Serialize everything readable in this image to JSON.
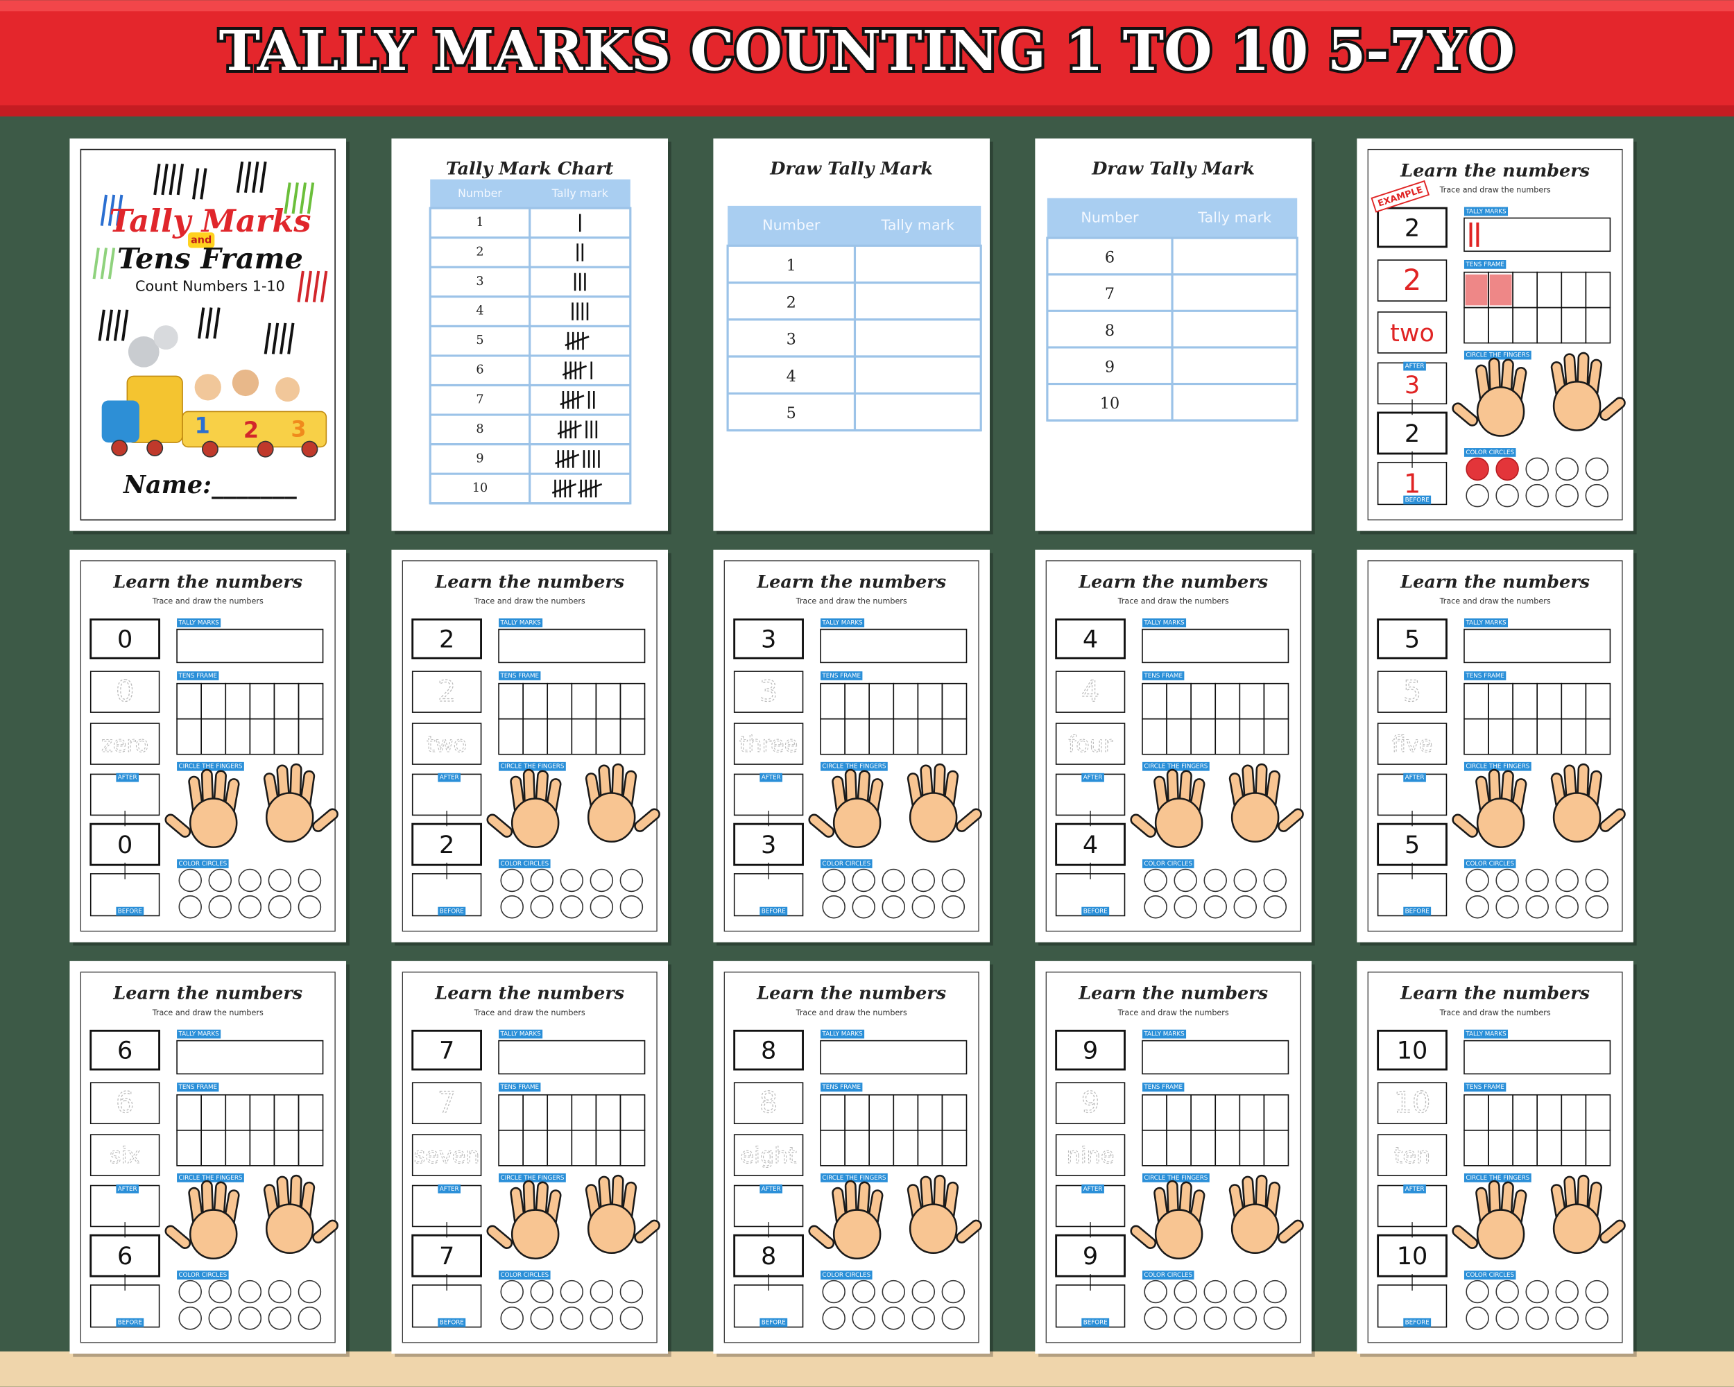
{
  "header": {
    "title": "TALLY MARKS COUNTING 1 TO 10 5-7YO"
  },
  "cover": {
    "title_1": "Tally Marks",
    "connector": "and",
    "title_2": "Tens Frame",
    "subtitle": "Count Numbers 1-10",
    "name_line": "Name:_______",
    "train_numbers": [
      1,
      2,
      3
    ]
  },
  "tally_chart": {
    "title": "Tally Mark Chart",
    "headers": [
      "Number",
      "Tally mark"
    ],
    "numbers": [
      1,
      2,
      3,
      4,
      5,
      6,
      7,
      8,
      9,
      10
    ]
  },
  "draw_pages": [
    {
      "title": "Draw Tally Mark",
      "headers": [
        "Number",
        "Tally mark"
      ],
      "numbers": [
        1,
        2,
        3,
        4,
        5
      ]
    },
    {
      "title": "Draw Tally Mark",
      "headers": [
        "Number",
        "Tally mark"
      ],
      "numbers": [
        6,
        7,
        8,
        9,
        10
      ]
    }
  ],
  "worksheet_labels": {
    "title": "Learn the numbers",
    "subtitle": "Trace and draw the numbers",
    "tally_marks": "TALLY MARKS",
    "tens_frame": "TENS FRAME",
    "circle_fingers": "CIRCLE THE FINGERS",
    "after": "AFTER",
    "color_circles": "COLOR CIRCLES",
    "before": "BEFORE"
  },
  "example": {
    "stamp": "EXAMPLE",
    "number": 2,
    "trace": 2,
    "word": "two",
    "after": 3,
    "before": 1,
    "tally": 2,
    "colored_circles": 2
  },
  "worksheets": [
    {
      "number": 0,
      "word": "zero"
    },
    {
      "number": 2,
      "word": "two"
    },
    {
      "number": 3,
      "word": "three"
    },
    {
      "number": 4,
      "word": "four"
    },
    {
      "number": 5,
      "word": "five"
    },
    {
      "number": 6,
      "word": "six"
    },
    {
      "number": 7,
      "word": "seven"
    },
    {
      "number": 8,
      "word": "eight"
    },
    {
      "number": 9,
      "word": "nine"
    },
    {
      "number": 10,
      "word": "ten"
    }
  ]
}
